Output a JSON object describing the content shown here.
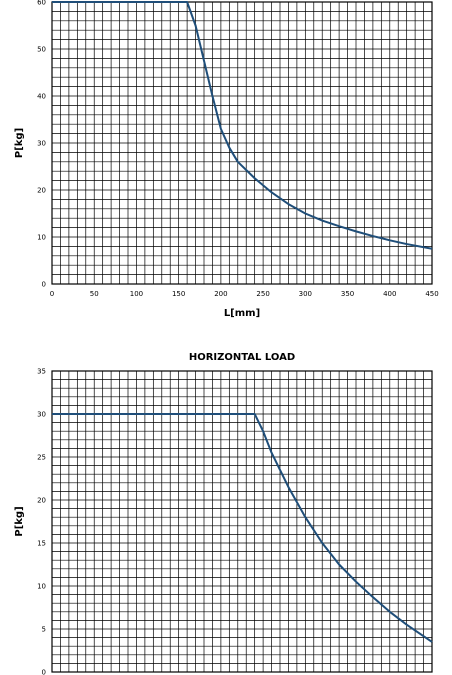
{
  "chart_data": [
    {
      "type": "line",
      "title": "",
      "xlabel": "L[mm]",
      "ylabel": "P[kg]",
      "xlim": [
        0,
        450
      ],
      "ylim": [
        0,
        60
      ],
      "xticks": [
        0,
        50,
        100,
        150,
        200,
        250,
        300,
        350,
        400,
        450
      ],
      "yticks": [
        0,
        10,
        20,
        30,
        40,
        50,
        60
      ],
      "x_minor_step": 10,
      "y_minor_step": 2,
      "grid": true,
      "line_color": "#1f4e79",
      "series": [
        {
          "x": [
            0,
            160,
            170,
            180,
            190,
            200,
            210,
            220,
            240,
            260,
            280,
            300,
            320,
            340,
            360,
            380,
            400,
            420,
            450
          ],
          "y": [
            60,
            60,
            55,
            47.5,
            40,
            33,
            29,
            26,
            22.5,
            19.5,
            17,
            15,
            13.5,
            12.3,
            11.2,
            10.2,
            9.3,
            8.5,
            7.5
          ]
        }
      ]
    },
    {
      "type": "line",
      "title": "HORIZONTAL LOAD",
      "xlabel": "",
      "ylabel": "P[kg]",
      "xlim": [
        0,
        450
      ],
      "ylim": [
        0,
        35
      ],
      "xticks": [],
      "yticks": [
        0,
        5,
        10,
        15,
        20,
        25,
        30,
        35
      ],
      "x_minor_step": 10,
      "y_minor_step": 1,
      "grid": true,
      "line_color": "#1f4e79",
      "series": [
        {
          "x": [
            0,
            240,
            250,
            260,
            280,
            300,
            320,
            340,
            360,
            380,
            400,
            420,
            450
          ],
          "y": [
            30,
            30,
            28,
            25.5,
            21.5,
            18,
            15,
            12.5,
            10.5,
            8.7,
            7,
            5.5,
            3.5
          ]
        }
      ]
    }
  ]
}
